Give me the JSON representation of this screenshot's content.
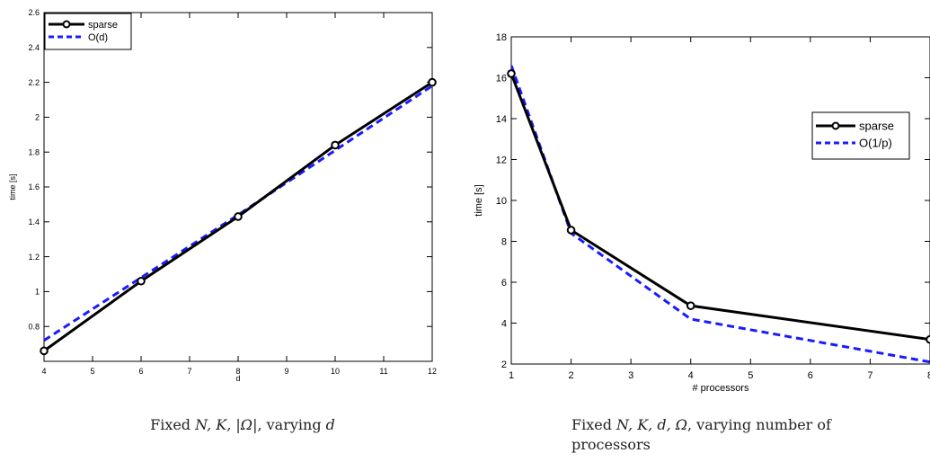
{
  "chart_data": [
    {
      "type": "line",
      "xlabel": "d",
      "ylabel": "time [s]",
      "xlim": [
        4,
        12
      ],
      "ylim": [
        0.6,
        2.6
      ],
      "xticks": [
        4,
        5,
        6,
        7,
        8,
        9,
        10,
        11,
        12
      ],
      "yticks": [
        0.8,
        1,
        1.2,
        1.4,
        1.6,
        1.8,
        2,
        2.2,
        2.4,
        2.6
      ],
      "legend_position": "top-left",
      "series": [
        {
          "name": "sparse",
          "color": "#000000",
          "style": "solid",
          "marker": "circle",
          "x": [
            4,
            6,
            8,
            10,
            12
          ],
          "y": [
            0.66,
            1.06,
            1.43,
            1.84,
            2.2
          ]
        },
        {
          "name": "O(d)",
          "color": "#1a1aff",
          "style": "dashed",
          "marker": "none",
          "x": [
            4,
            6,
            8,
            10,
            12
          ],
          "y": [
            0.72,
            1.08,
            1.44,
            1.81,
            2.18
          ]
        }
      ],
      "caption": {
        "text": "Fixed ",
        "math": "N, K, |Ω|",
        "middle": ", varying ",
        "math2": "d"
      }
    },
    {
      "type": "line",
      "xlabel": "# processors",
      "ylabel": "time [s]",
      "xlim": [
        1,
        8
      ],
      "ylim": [
        2,
        18
      ],
      "xticks": [
        1,
        2,
        3,
        4,
        5,
        6,
        7,
        8
      ],
      "yticks": [
        2,
        4,
        6,
        8,
        10,
        12,
        14,
        16,
        18
      ],
      "legend_position": "right",
      "series": [
        {
          "name": "sparse",
          "color": "#000000",
          "style": "solid",
          "marker": "circle",
          "x": [
            1,
            2,
            4,
            8
          ],
          "y": [
            16.2,
            8.55,
            4.85,
            3.2
          ]
        },
        {
          "name": "O(1/p)",
          "color": "#1a1aff",
          "style": "dashed",
          "marker": "none",
          "x": [
            1,
            2,
            4,
            8
          ],
          "y": [
            16.6,
            8.4,
            4.2,
            2.1
          ]
        }
      ],
      "caption": {
        "text": "Fixed ",
        "math": "N, K, d, Ω",
        "middle": ", varying number of",
        "line2": "processors"
      }
    }
  ]
}
